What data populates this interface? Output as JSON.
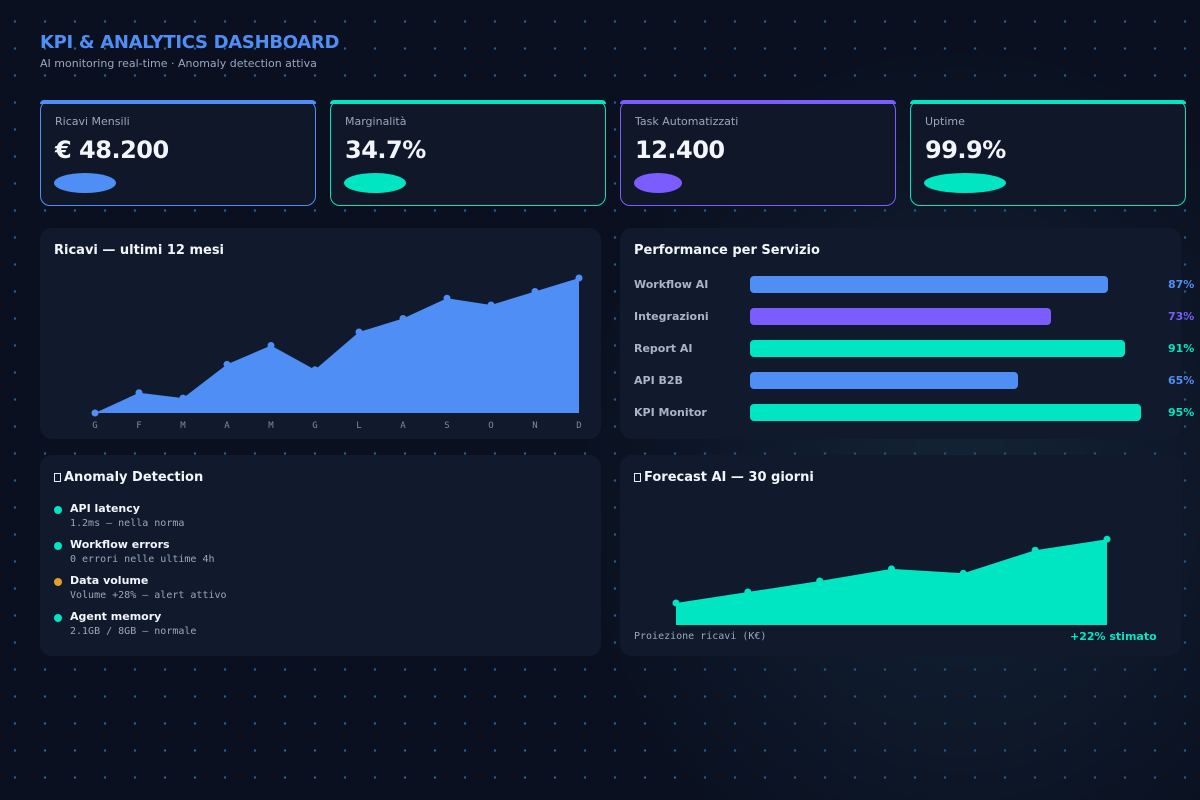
{
  "header": {
    "title": "KPI & ANALYTICS DASHBOARD",
    "subtitle": "AI monitoring real-time · Anomaly detection attiva"
  },
  "kpis": [
    {
      "label": "Ricavi Mensili",
      "value": "€ 48.200",
      "color": "#4f8ef5"
    },
    {
      "label": "Marginalità",
      "value": "34.7%",
      "color": "#00e5c2"
    },
    {
      "label": "Task Automatizzati",
      "value": "12.400",
      "color": "#7b5cff"
    },
    {
      "label": "Uptime",
      "value": "99.9%",
      "color": "#00e5c2"
    }
  ],
  "revenue": {
    "title": "Ricavi — ultimi 12 mesi",
    "chart_data": {
      "type": "area",
      "categories": [
        "G",
        "F",
        "M",
        "A",
        "M",
        "G",
        "L",
        "A",
        "S",
        "O",
        "N",
        "D"
      ],
      "values": [
        0,
        15,
        11,
        36,
        50,
        32,
        60,
        70,
        85,
        80,
        90,
        100
      ],
      "color": "#4f8ef5"
    }
  },
  "performance": {
    "title": "Performance per Servizio",
    "chart_data": {
      "type": "bar",
      "categories": [
        "Workflow AI",
        "Integrazioni",
        "Report AI",
        "API B2B",
        "KPI Monitor"
      ],
      "values": [
        87,
        73,
        91,
        65,
        95
      ],
      "labels": [
        "87%",
        "73%",
        "91%",
        "65%",
        "95%"
      ],
      "colors": [
        "#4f8ef5",
        "#7b5cff",
        "#00e5c2",
        "#4f8ef5",
        "#00e5c2"
      ]
    }
  },
  "anomaly": {
    "title": "Anomaly Detection",
    "icon": "box-icon",
    "items": [
      {
        "name": "API latency",
        "desc": "1.2ms — nella norma",
        "color": "#00e5c2"
      },
      {
        "name": "Workflow errors",
        "desc": "0 errori nelle ultime 4h",
        "color": "#00e5c2"
      },
      {
        "name": "Data volume",
        "desc": "Volume +28% — alert attivo",
        "color": "#e0a030"
      },
      {
        "name": "Agent memory",
        "desc": "2.1GB / 8GB — normale",
        "color": "#00e5c2"
      }
    ]
  },
  "forecast": {
    "title": "Forecast AI — 30 giorni",
    "icon": "box-icon",
    "caption": "Proiezione ricavi (K€)",
    "delta": "+22% stimato",
    "chart_data": {
      "type": "area",
      "values": [
        0,
        10,
        20,
        31,
        27,
        48,
        58
      ],
      "color": "#00e5c2"
    }
  }
}
